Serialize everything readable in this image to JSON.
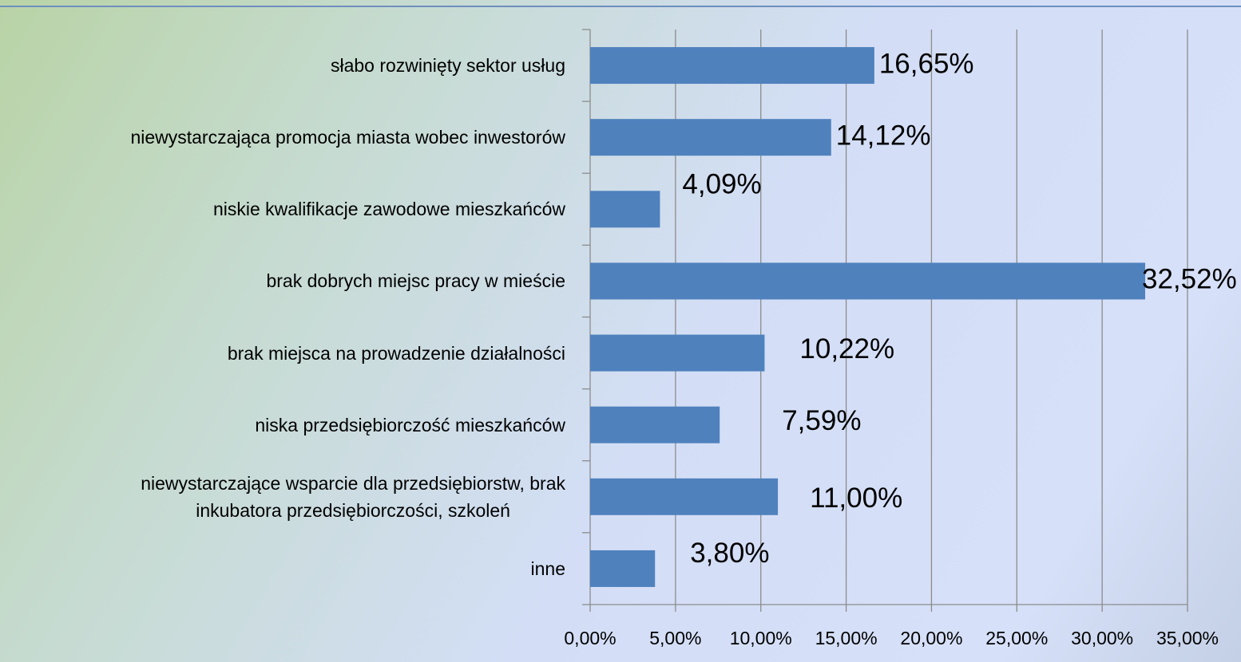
{
  "chart_data": {
    "type": "bar",
    "orientation": "horizontal",
    "categories": [
      "słabo rozwinięty sektor usług",
      "niewystarczająca promocja miasta wobec inwestorów",
      "niskie kwalifikacje zawodowe mieszkańców",
      "brak dobrych miejsc pracy w mieście",
      "brak miejsca na prowadzenie działalności",
      "niska przedsiębiorczość mieszkańców",
      "niewystarczające wsparcie dla przedsiębiorstw, brak\ninkubatora przedsiębiorczości, szkoleń",
      "inne"
    ],
    "values": [
      16.65,
      14.12,
      4.09,
      32.52,
      10.22,
      7.59,
      11.0,
      3.8
    ],
    "value_labels": [
      "16,65%",
      "14,12%",
      "4,09%",
      "32,52%",
      "10,22%",
      "7,59%",
      "11,00%",
      "3,80%"
    ],
    "color": "#4f81bd",
    "xlim": [
      0,
      35
    ],
    "xticks": [
      {
        "value": 0,
        "label": "0,00%"
      },
      {
        "value": 5,
        "label": "5,00%"
      },
      {
        "value": 10,
        "label": "10,00%"
      },
      {
        "value": 15,
        "label": "15,00%"
      },
      {
        "value": 20,
        "label": "20,00%"
      },
      {
        "value": 25,
        "label": "25,00%"
      },
      {
        "value": 30,
        "label": "30,00%"
      },
      {
        "value": 35,
        "label": "35,00%"
      }
    ],
    "grid": true
  }
}
